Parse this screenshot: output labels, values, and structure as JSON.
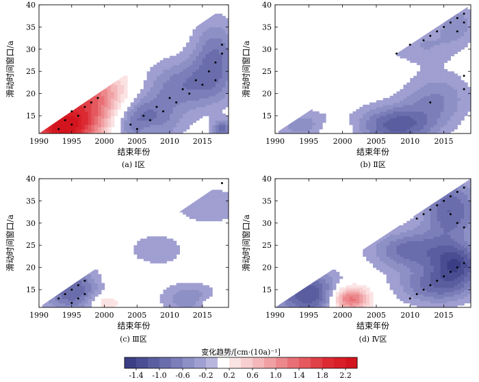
{
  "chart_data": [
    {
      "type": "heatmap",
      "panel": "(a) Ⅰ区",
      "xlabel": "结束年份",
      "ylabel": "滑动时间窗口/a",
      "xlim": [
        1990,
        2019
      ],
      "ylim": [
        11,
        40
      ],
      "xticks": [
        1990,
        1995,
        2000,
        2005,
        2010,
        2015
      ],
      "yticks": [
        15,
        20,
        25,
        30,
        35,
        40
      ],
      "blobs": [
        {
          "end_year": 1996.5,
          "window": 16,
          "trend": 1.8,
          "sx": 5,
          "sy": 5
        },
        {
          "end_year": 1993,
          "window": 12,
          "trend": 1.4,
          "sx": 3,
          "sy": 2.5
        },
        {
          "end_year": 2000,
          "window": 21,
          "trend": 0.3,
          "sx": 3,
          "sy": 3
        },
        {
          "end_year": 2005,
          "window": 14,
          "trend": -1.2,
          "sx": 4,
          "sy": 4
        },
        {
          "end_year": 2012,
          "window": 22,
          "trend": -0.7,
          "sx": 4,
          "sy": 4
        },
        {
          "end_year": 2017,
          "window": 28,
          "trend": -0.8,
          "sx": 2.5,
          "sy": 6
        },
        {
          "end_year": 2007,
          "window": 12,
          "trend": 0.3,
          "sx": 1.5,
          "sy": 1.5
        },
        {
          "end_year": 2018,
          "window": 12,
          "trend": -0.9,
          "sx": 1,
          "sy": 1.5
        }
      ],
      "sig": [
        [
          1993,
          12
        ],
        [
          1994,
          14
        ],
        [
          1995,
          13
        ],
        [
          1996,
          15
        ],
        [
          1997,
          17
        ],
        [
          1998,
          18
        ],
        [
          1999,
          19
        ],
        [
          1995,
          16
        ],
        [
          2004,
          13
        ],
        [
          2006,
          15
        ],
        [
          2008,
          17
        ],
        [
          2010,
          19
        ],
        [
          2012,
          21
        ],
        [
          2014,
          23
        ],
        [
          2016,
          25
        ],
        [
          2017,
          27
        ],
        [
          2018,
          29
        ],
        [
          2018,
          31
        ],
        [
          2017,
          23
        ],
        [
          2009,
          16
        ],
        [
          2011,
          18
        ],
        [
          2013,
          20
        ],
        [
          2015,
          22
        ],
        [
          2007,
          14
        ],
        [
          2005,
          12
        ]
      ]
    },
    {
      "type": "heatmap",
      "panel": "(b) Ⅱ区",
      "xlabel": "结束年份",
      "ylabel": "滑动时间窗口/a",
      "xlim": [
        1990,
        2019
      ],
      "ylim": [
        11,
        40
      ],
      "xticks": [
        1990,
        1995,
        2000,
        2005,
        2010,
        2015
      ],
      "yticks": [
        15,
        20,
        25,
        30,
        35,
        40
      ],
      "blobs": [
        {
          "end_year": 1994,
          "window": 13,
          "trend": -0.5,
          "sx": 3,
          "sy": 2.5
        },
        {
          "end_year": 1999,
          "window": 12,
          "trend": 0.4,
          "sx": 1.5,
          "sy": 1.2
        },
        {
          "end_year": 2008,
          "window": 13,
          "trend": -1.1,
          "sx": 4,
          "sy": 3
        },
        {
          "end_year": 2014,
          "window": 19,
          "trend": -0.6,
          "sx": 3.5,
          "sy": 4
        },
        {
          "end_year": 2012,
          "window": 31,
          "trend": -0.4,
          "sx": 4,
          "sy": 3
        },
        {
          "end_year": 2017,
          "window": 36,
          "trend": -0.5,
          "sx": 2,
          "sy": 3
        }
      ],
      "sig": [
        [
          2008,
          29
        ],
        [
          2010,
          31
        ],
        [
          2012,
          32
        ],
        [
          2013,
          33
        ],
        [
          2014,
          34
        ],
        [
          2015,
          35
        ],
        [
          2016,
          36
        ],
        [
          2017,
          37
        ],
        [
          2018,
          38
        ],
        [
          2018,
          36
        ],
        [
          2017,
          34
        ],
        [
          2013,
          18
        ],
        [
          2018,
          24
        ],
        [
          2018,
          21
        ]
      ]
    },
    {
      "type": "heatmap",
      "panel": "(c) Ⅲ区",
      "xlabel": "结束年份",
      "ylabel": "滑动时间窗口/a",
      "xlim": [
        1990,
        2019
      ],
      "ylim": [
        11,
        40
      ],
      "xticks": [
        1990,
        1995,
        2000,
        2005,
        2010,
        2015
      ],
      "yticks": [
        15,
        20,
        25,
        30,
        35,
        40
      ],
      "blobs": [
        {
          "end_year": 1995,
          "window": 15,
          "trend": -1.0,
          "sx": 3,
          "sy": 3.5
        },
        {
          "end_year": 2000,
          "window": 12,
          "trend": 0.5,
          "sx": 1.5,
          "sy": 1.5
        },
        {
          "end_year": 2003,
          "window": 17,
          "trend": 0.2,
          "sx": 2,
          "sy": 2
        },
        {
          "end_year": 2008,
          "window": 24,
          "trend": -0.4,
          "sx": 3,
          "sy": 2.5
        },
        {
          "end_year": 2016,
          "window": 34,
          "trend": -0.4,
          "sx": 4,
          "sy": 3
        },
        {
          "end_year": 2013,
          "window": 13,
          "trend": -0.6,
          "sx": 3,
          "sy": 2.5
        },
        {
          "end_year": 2016,
          "window": 12,
          "trend": 0.3,
          "sx": 1.5,
          "sy": 1.2
        }
      ],
      "sig": [
        [
          1993,
          13
        ],
        [
          1994,
          14
        ],
        [
          1995,
          15
        ],
        [
          1996,
          16
        ],
        [
          1997,
          17
        ],
        [
          1995,
          12
        ],
        [
          1996,
          13
        ],
        [
          1997,
          14
        ],
        [
          2018,
          39
        ]
      ]
    },
    {
      "type": "heatmap",
      "panel": "(d) Ⅳ区",
      "xlabel": "结束年份",
      "ylabel": "滑动时间窗口/a",
      "xlim": [
        1990,
        2019
      ],
      "ylim": [
        11,
        40
      ],
      "xticks": [
        1990,
        1995,
        2000,
        2005,
        2010,
        2015
      ],
      "yticks": [
        15,
        20,
        25,
        30,
        35,
        40
      ],
      "blobs": [
        {
          "end_year": 1995,
          "window": 14,
          "trend": -1.2,
          "sx": 3.5,
          "sy": 3.5
        },
        {
          "end_year": 2001,
          "window": 13,
          "trend": 1.5,
          "sx": 2,
          "sy": 2
        },
        {
          "end_year": 2010,
          "window": 24,
          "trend": -0.9,
          "sx": 4,
          "sy": 3
        },
        {
          "end_year": 2016,
          "window": 33,
          "trend": -1.0,
          "sx": 3,
          "sy": 5
        },
        {
          "end_year": 2014,
          "window": 16,
          "trend": -0.9,
          "sx": 4,
          "sy": 3
        },
        {
          "end_year": 2017,
          "window": 21,
          "trend": -1.1,
          "sx": 2.5,
          "sy": 3
        }
      ],
      "sig": [
        [
          2011,
          31
        ],
        [
          2012,
          32
        ],
        [
          2013,
          33
        ],
        [
          2014,
          34
        ],
        [
          2015,
          35
        ],
        [
          2016,
          36
        ],
        [
          2017,
          37
        ],
        [
          2018,
          38
        ],
        [
          2016,
          32
        ],
        [
          2017,
          30
        ],
        [
          2018,
          29
        ],
        [
          2011,
          14
        ],
        [
          2012,
          15
        ],
        [
          2013,
          16
        ],
        [
          2014,
          17
        ],
        [
          2015,
          18
        ],
        [
          2016,
          19
        ],
        [
          2017,
          20
        ],
        [
          2018,
          21
        ],
        [
          2010,
          13
        ]
      ]
    }
  ],
  "colorbar": {
    "title": "变化趋势/[cm·(10a)⁻¹]",
    "ticks": [
      "-1.4",
      "-1.0",
      "-0.6",
      "-0.2",
      "0.2",
      "0.6",
      "1.0",
      "1.4",
      "1.8",
      "2.2"
    ],
    "bounds": [
      -1.6,
      -1.4,
      -1.2,
      -1.0,
      -0.8,
      -0.6,
      -0.4,
      -0.2,
      0.0,
      0.2,
      0.4,
      0.6,
      0.8,
      1.0,
      1.2,
      1.4,
      1.6,
      1.8,
      2.0,
      2.2,
      2.4
    ],
    "colors": [
      "#3c3e85",
      "#4a4d92",
      "#5a5d9f",
      "#6a6dac",
      "#7b7eb9",
      "#8d90c5",
      "#a09fd1",
      "#b9b6de",
      "#ffffff",
      "#fbe3e3",
      "#f8cfd0",
      "#f4b8ba",
      "#f0a0a3",
      "#ec888c",
      "#e87075",
      "#e4585e",
      "#e04048",
      "#dc2a33",
      "#d81e27",
      "#d2141e"
    ]
  }
}
